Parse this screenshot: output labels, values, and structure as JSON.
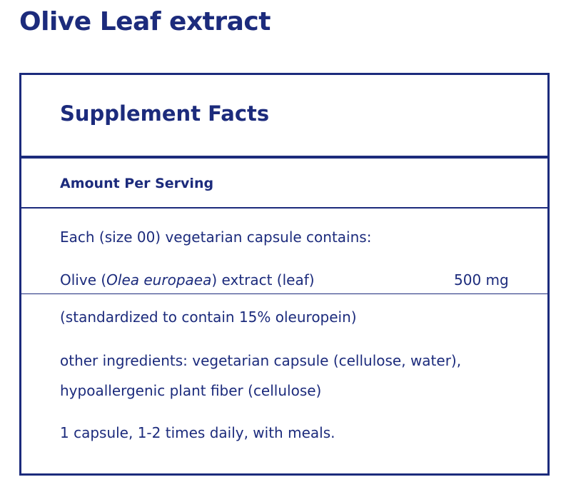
{
  "header": {
    "title": "Olive Leaf extract"
  },
  "facts": {
    "heading": "Supplement Facts",
    "serving_label": "Amount Per Serving",
    "capsule_intro": "Each (size 00) vegetarian capsule contains:",
    "ingredient": {
      "name_prefix": "Olive (",
      "name_latin": "Olea europaea",
      "name_suffix": ") extract (leaf)",
      "amount": "500 mg"
    },
    "standardization": "(standardized to contain 15% oleuropein)",
    "other_ingredients": [
      "other ingredients: vegetarian capsule (cellulose, water),",
      "hypoallergenic plant fiber (cellulose)"
    ],
    "directions": "1 capsule, 1-2 times daily, with meals."
  }
}
